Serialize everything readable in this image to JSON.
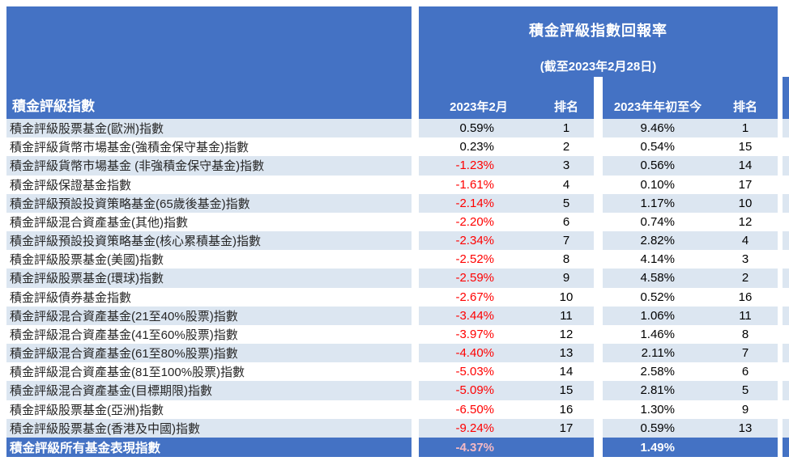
{
  "chart_data": {
    "type": "table",
    "title": "積金評級指數回報率",
    "subtitle": "(截至2023年2月28日)",
    "row_header_label": "積金評級指數",
    "columns": [
      "2023年2月",
      "排名",
      "2023年年初至今",
      "排名"
    ],
    "rows": [
      {
        "label": "積金評級股票基金(歐洲)指數",
        "feb": "0.59%",
        "feb_rank": "1",
        "ytd": "9.46%",
        "ytd_rank": "1"
      },
      {
        "label": "積金評級貨幣市場基金(強積金保守基金)指數",
        "feb": "0.23%",
        "feb_rank": "2",
        "ytd": "0.54%",
        "ytd_rank": "15"
      },
      {
        "label": "積金評級貨幣市場基金 (非強積金保守基金)指數",
        "feb": "-1.23%",
        "feb_rank": "3",
        "ytd": "0.56%",
        "ytd_rank": "14"
      },
      {
        "label": "積金評級保證基金指數",
        "feb": "-1.61%",
        "feb_rank": "4",
        "ytd": "0.10%",
        "ytd_rank": "17"
      },
      {
        "label": "積金評級預設投資策略基金(65歲後基金)指數",
        "feb": "-2.14%",
        "feb_rank": "5",
        "ytd": "1.17%",
        "ytd_rank": "10"
      },
      {
        "label": "積金評級混合資產基金(其他)指數",
        "feb": "-2.20%",
        "feb_rank": "6",
        "ytd": "0.74%",
        "ytd_rank": "12"
      },
      {
        "label": "積金評級預設投資策略基金(核心累積基金)指數",
        "feb": "-2.34%",
        "feb_rank": "7",
        "ytd": "2.82%",
        "ytd_rank": "4"
      },
      {
        "label": "積金評級股票基金(美國)指數",
        "feb": "-2.52%",
        "feb_rank": "8",
        "ytd": "4.14%",
        "ytd_rank": "3"
      },
      {
        "label": "積金評級股票基金(環球)指數",
        "feb": "-2.59%",
        "feb_rank": "9",
        "ytd": "4.58%",
        "ytd_rank": "2"
      },
      {
        "label": "積金評級債券基金指數",
        "feb": "-2.67%",
        "feb_rank": "10",
        "ytd": "0.52%",
        "ytd_rank": "16"
      },
      {
        "label": "積金評級混合資產基金(21至40%股票)指數",
        "feb": "-3.44%",
        "feb_rank": "11",
        "ytd": "1.06%",
        "ytd_rank": "11"
      },
      {
        "label": "積金評級混合資產基金(41至60%股票)指數",
        "feb": "-3.97%",
        "feb_rank": "12",
        "ytd": "1.46%",
        "ytd_rank": "8"
      },
      {
        "label": "積金評級混合資產基金(61至80%股票)指數",
        "feb": "-4.40%",
        "feb_rank": "13",
        "ytd": "2.11%",
        "ytd_rank": "7"
      },
      {
        "label": "積金評級混合資產基金(81至100%股票)指數",
        "feb": "-5.03%",
        "feb_rank": "14",
        "ytd": "2.58%",
        "ytd_rank": "6"
      },
      {
        "label": "積金評級混合資產基金(目標期限)指數",
        "feb": "-5.09%",
        "feb_rank": "15",
        "ytd": "2.81%",
        "ytd_rank": "5"
      },
      {
        "label": "積金評級股票基金(亞洲)指數",
        "feb": "-6.50%",
        "feb_rank": "16",
        "ytd": "1.30%",
        "ytd_rank": "9"
      },
      {
        "label": "積金評級股票基金(香港及中國)指數",
        "feb": "-9.24%",
        "feb_rank": "17",
        "ytd": "0.59%",
        "ytd_rank": "13"
      }
    ],
    "summary": {
      "label": "積金評級所有基金表現指數",
      "feb": "-4.37%",
      "ytd": "1.49%"
    }
  },
  "colors": {
    "header_blue": "#4472C4",
    "stripe_light_blue": "#DCE6F1",
    "negative_red": "#FF0000",
    "summary_feb_pink": "#F5B9C3",
    "text_dark": "#262626",
    "background_white": "#FFFFFF"
  }
}
